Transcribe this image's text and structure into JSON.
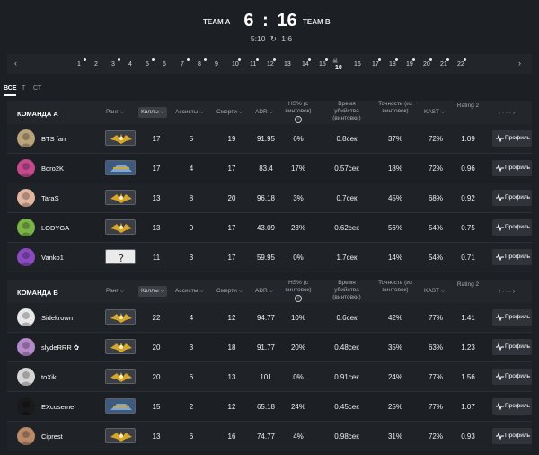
{
  "header": {
    "team_a": "TEAM A",
    "team_b": "TEAM B",
    "score_a": "6",
    "score_sep": ":",
    "score_b": "16",
    "half_a": "5:10",
    "half_b": "1:6",
    "swap_icon": "↻"
  },
  "rounds": {
    "prev": "‹",
    "next": "›",
    "items": [
      "1",
      "2",
      "3",
      "4",
      "5",
      "6",
      "7",
      "8",
      "9",
      "10",
      "11",
      "12",
      "13",
      "14",
      "15",
      "",
      "16",
      "17",
      "18",
      "19",
      "20",
      "21",
      "22"
    ],
    "active_label": "10"
  },
  "tabs": [
    "ВСЕ",
    "Т",
    "СТ"
  ],
  "columns": {
    "rank": "Ранг",
    "kills": "Киллы",
    "assists": "Ассисты",
    "deaths": "Смерти",
    "adr": "ADR",
    "hs": "HS% (с винтовок)",
    "ttk": "Время убийства (винтовки)",
    "accuracy": "Точность (из винтовок)",
    "kast": "KAST",
    "rating": "Rating 2",
    "pager": "‹ · · · ›",
    "info_icon": "i"
  },
  "team_a": {
    "name": "КОМАНДА А",
    "players": [
      {
        "name": "BTS fan",
        "kills": "17",
        "assists": "5",
        "deaths": "19",
        "adr": "91.95",
        "hs": "6%",
        "ttk": "0.8сек",
        "acc": "37%",
        "kast": "72%",
        "rating": "1.09",
        "profile": "Профиль"
      },
      {
        "name": "Boro2K",
        "kills": "17",
        "assists": "4",
        "deaths": "17",
        "adr": "83.4",
        "hs": "17%",
        "ttk": "0.57сек",
        "acc": "18%",
        "kast": "72%",
        "rating": "0.96",
        "profile": "Профиль"
      },
      {
        "name": "TaraS",
        "kills": "13",
        "assists": "8",
        "deaths": "20",
        "adr": "96.18",
        "hs": "3%",
        "ttk": "0.7сек",
        "acc": "45%",
        "kast": "68%",
        "rating": "0.92",
        "profile": "Профиль"
      },
      {
        "name": "LODYGA",
        "kills": "13",
        "assists": "0",
        "deaths": "17",
        "adr": "43.09",
        "hs": "23%",
        "ttk": "0.62сек",
        "acc": "56%",
        "kast": "54%",
        "rating": "0.75",
        "profile": "Профиль"
      },
      {
        "name": "Vanko1",
        "kills": "11",
        "assists": "3",
        "deaths": "17",
        "adr": "59.95",
        "hs": "0%",
        "ttk": "1.7сек",
        "acc": "14%",
        "kast": "54%",
        "rating": "0.71",
        "profile": "Профиль"
      }
    ]
  },
  "team_b": {
    "name": "КОМАНДА В",
    "players": [
      {
        "name": "Sidekrown",
        "kills": "22",
        "assists": "4",
        "deaths": "12",
        "adr": "94.77",
        "hs": "10%",
        "ttk": "0.6сек",
        "acc": "42%",
        "kast": "77%",
        "rating": "1.41",
        "profile": "Профиль"
      },
      {
        "name": "slydeRRR ✿",
        "kills": "20",
        "assists": "3",
        "deaths": "18",
        "adr": "91.77",
        "hs": "20%",
        "ttk": "0.48сек",
        "acc": "35%",
        "kast": "63%",
        "rating": "1.23",
        "profile": "Профиль"
      },
      {
        "name": "toXik",
        "kills": "20",
        "assists": "6",
        "deaths": "13",
        "adr": "101",
        "hs": "0%",
        "ttk": "0.91сек",
        "acc": "24%",
        "kast": "77%",
        "rating": "1.56",
        "profile": "Профиль"
      },
      {
        "name": "EXcuseme",
        "kills": "15",
        "assists": "2",
        "deaths": "12",
        "adr": "65.18",
        "hs": "24%",
        "ttk": "0.45сек",
        "acc": "25%",
        "kast": "77%",
        "rating": "1.07",
        "profile": "Профиль"
      },
      {
        "name": "Ciprest",
        "kills": "13",
        "assists": "6",
        "deaths": "16",
        "adr": "74.77",
        "hs": "4%",
        "ttk": "0.98сек",
        "acc": "31%",
        "kast": "72%",
        "rating": "0.93",
        "profile": "Профиль"
      }
    ]
  },
  "colors": {
    "background": "#1c1f24",
    "header_row": "#23272c",
    "button": "#30343a",
    "rank_gold": "#d9a62a"
  }
}
